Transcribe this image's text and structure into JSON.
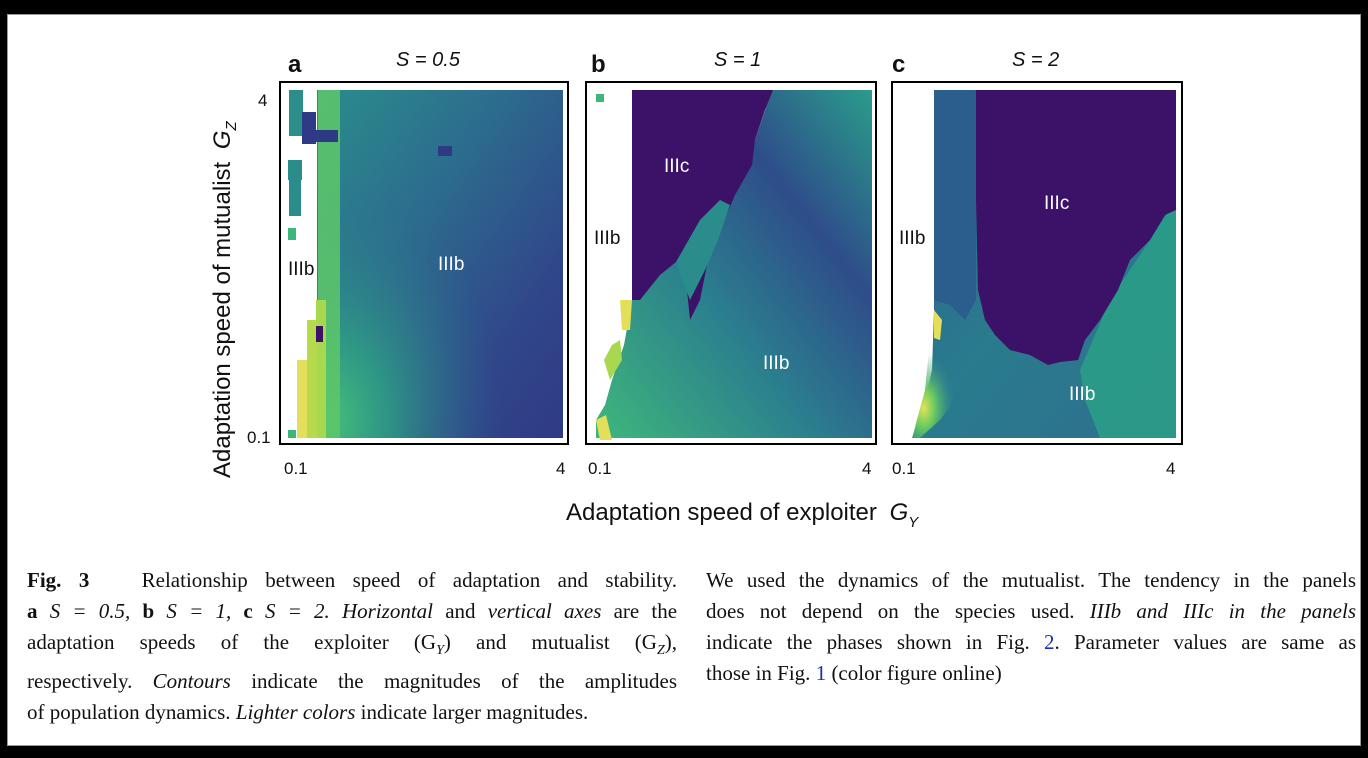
{
  "figure": {
    "y_axis_label": "Adaptation speed of mutualist",
    "y_axis_symbol": "G",
    "y_axis_subscript": "Z",
    "x_axis_label": "Adaptation speed of exploiter",
    "x_axis_symbol": "G",
    "x_axis_subscript": "Y",
    "panels": [
      {
        "letter": "a",
        "title": "S = 0.5",
        "x_ticks": [
          "0.1",
          "4"
        ],
        "y_ticks": [
          "4",
          "0.1"
        ],
        "regions": [
          {
            "label": "IIIb"
          },
          {
            "label": "IIIb"
          }
        ]
      },
      {
        "letter": "b",
        "title": "S = 1",
        "x_ticks": [
          "0.1",
          "4"
        ],
        "y_ticks": [],
        "regions": [
          {
            "label": "IIIc"
          },
          {
            "label": "IIIb"
          },
          {
            "label": "IIIb"
          }
        ]
      },
      {
        "letter": "c",
        "title": "S = 2",
        "x_ticks": [
          "0.1",
          "4"
        ],
        "y_ticks": [],
        "regions": [
          {
            "label": "IIIc"
          },
          {
            "label": "IIIb"
          },
          {
            "label": "IIIb"
          }
        ]
      }
    ],
    "colors": {
      "dark_purple": "#3b1268",
      "dark_blue": "#2e3f86",
      "teal": "#2b7d8e",
      "green": "#3cb57a",
      "yellow": "#e7e25a"
    }
  },
  "caption": {
    "left": {
      "fig_label": "Fig. 3",
      "l1_rest": "Relationship between speed of adaptation and stability.",
      "l2_a": "a",
      "l2_a_text": "S = 0.5,",
      "l2_b": "b",
      "l2_b_text": "S = 1,",
      "l2_c": "c",
      "l2_c_text": "S = 2.",
      "l2_horizontal": "Horizontal",
      "l2_and": "and",
      "l2_vertical_axes": "vertical axes",
      "l2_end": "are the",
      "l3": "adaptation speeds of the exploiter (G",
      "l3_sub1": "Y",
      "l3_mid": ") and mutualist (G",
      "l3_sub2": "Z",
      "l3_end": "),",
      "l4_start": "respectively.",
      "l4_contours": "Contours",
      "l4_end": "indicate the magnitudes of the amplitudes",
      "l5_start": "of population dynamics.",
      "l5_lighter": "Lighter colors",
      "l5_end": "indicate larger magnitudes."
    },
    "right": {
      "r1": "We used the dynamics of the mutualist. The tendency in the panels",
      "r2_start": "does not depend on the species used.",
      "r2_italic": "IIIb and IIIc in the panels",
      "r3_start": "indicate the phases shown in Fig.",
      "r3_link": "2",
      "r3_end": ". Parameter values are same as",
      "r4_start": "those in Fig.",
      "r4_link": "1",
      "r4_end": "(color figure online)"
    }
  }
}
